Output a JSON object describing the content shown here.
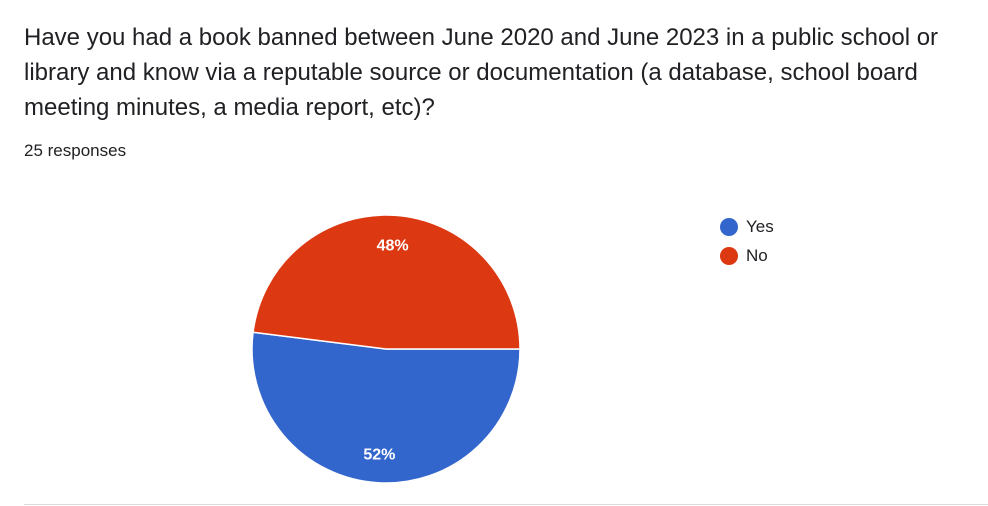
{
  "question": {
    "title": "Have you had a book banned between June 2020 and June 2023 in a public school or library and know via a reputable source or documentation (a database, school board meeting minutes, a media report, etc)?",
    "responses_label": "25 responses"
  },
  "chart_data": {
    "type": "pie",
    "categories": [
      "Yes",
      "No"
    ],
    "values": [
      52,
      48
    ],
    "data_labels": [
      "52%",
      "48%"
    ],
    "colors": [
      "#3366cc",
      "#dc3912"
    ],
    "legend_position": "right",
    "start": "right",
    "direction": "clockwise"
  }
}
